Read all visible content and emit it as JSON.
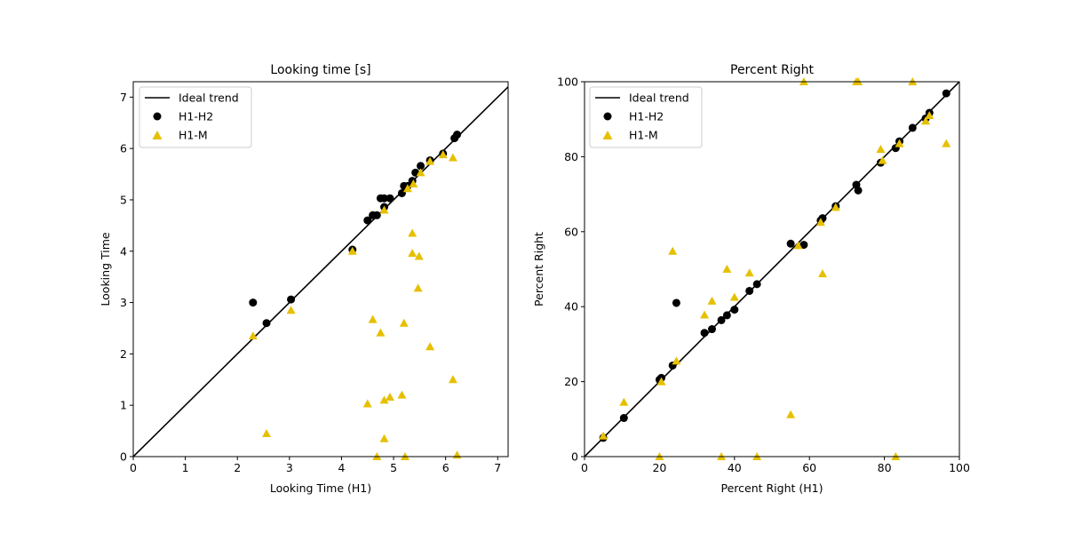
{
  "colors": {
    "ideal": "#000000",
    "h1h2": "#000000",
    "h1m": "#e6c000"
  },
  "chart_data": [
    {
      "type": "scatter",
      "title": "Looking time [s]",
      "xlabel": "Looking Time (H1)",
      "ylabel": "Looking Time",
      "xlim": [
        0,
        7.2
      ],
      "ylim": [
        0,
        7.3
      ],
      "xticks": [
        0,
        1,
        2,
        3,
        4,
        5,
        6,
        7
      ],
      "yticks": [
        0,
        1,
        2,
        3,
        4,
        5,
        6,
        7
      ],
      "legend": {
        "location": "top-left",
        "entries": [
          "Ideal trend",
          "H1-H2",
          "H1-M"
        ]
      },
      "grid": false,
      "ideal_trend": {
        "name": "Ideal trend",
        "x": [
          0,
          7.2
        ],
        "y": [
          0,
          7.2
        ]
      },
      "series": [
        {
          "name": "H1-H2",
          "marker": "circle",
          "x": [
            2.3,
            2.56,
            3.03,
            4.21,
            4.5,
            4.6,
            4.68,
            4.75,
            4.82,
            4.82,
            4.93,
            5.16,
            5.2,
            5.27,
            5.36,
            5.42,
            5.52,
            5.7,
            5.95,
            6.17,
            6.22
          ],
          "y": [
            3.0,
            2.6,
            3.06,
            4.03,
            4.6,
            4.7,
            4.7,
            5.03,
            5.03,
            4.86,
            5.03,
            5.13,
            5.27,
            5.27,
            5.37,
            5.53,
            5.66,
            5.77,
            5.9,
            6.2,
            6.27
          ]
        },
        {
          "name": "H1-M",
          "marker": "triangle",
          "x": [
            2.3,
            2.56,
            3.03,
            4.21,
            4.5,
            4.6,
            4.68,
            4.75,
            4.82,
            4.82,
            4.82,
            4.93,
            5.16,
            5.2,
            5.22,
            5.27,
            5.36,
            5.36,
            5.38,
            5.47,
            5.49,
            5.52,
            5.7,
            5.7,
            5.95,
            6.14,
            6.14,
            6.22
          ],
          "y": [
            2.35,
            0.45,
            2.85,
            4.0,
            1.03,
            2.67,
            0.0,
            2.41,
            0.35,
            1.1,
            4.8,
            1.16,
            1.2,
            2.6,
            0.0,
            5.22,
            3.96,
            4.35,
            5.31,
            3.28,
            3.9,
            5.53,
            2.14,
            5.75,
            5.88,
            1.5,
            5.82,
            0.03
          ]
        }
      ]
    },
    {
      "type": "scatter",
      "title": "Percent Right",
      "xlabel": "Percent Right (H1)",
      "ylabel": "Percent Right",
      "xlim": [
        0,
        100
      ],
      "ylim": [
        0,
        100
      ],
      "xticks": [
        0,
        20,
        40,
        60,
        80,
        100
      ],
      "yticks": [
        0,
        20,
        40,
        60,
        80,
        100
      ],
      "legend": {
        "location": "top-left",
        "entries": [
          "Ideal trend",
          "H1-H2",
          "H1-M"
        ]
      },
      "grid": false,
      "ideal_trend": {
        "name": "Ideal trend",
        "x": [
          0,
          100
        ],
        "y": [
          0,
          100
        ]
      },
      "series": [
        {
          "name": "H1-H2",
          "marker": "circle",
          "x": [
            5,
            10.5,
            20,
            20.5,
            23.5,
            24.5,
            32,
            34,
            36.5,
            38,
            40,
            44,
            46,
            55,
            58.5,
            63,
            63.5,
            67,
            72.5,
            73,
            79,
            83,
            84,
            87.5,
            91,
            92,
            96.5
          ],
          "y": [
            5,
            10.3,
            20.5,
            21,
            24.3,
            41,
            33,
            34,
            36.4,
            37.7,
            39.2,
            44.2,
            46,
            56.8,
            56.5,
            63,
            63.6,
            66.8,
            72.5,
            71,
            78.4,
            82.3,
            84.1,
            87.7,
            90.2,
            91.7,
            96.9
          ]
        },
        {
          "name": "H1-M",
          "marker": "triangle",
          "x": [
            5,
            10.5,
            20,
            20.5,
            23.5,
            24.5,
            32,
            34,
            36.5,
            38,
            40,
            44,
            46,
            55,
            57,
            58.5,
            63,
            63.5,
            67,
            72.5,
            73,
            79,
            79.5,
            83,
            84,
            87.5,
            91,
            92,
            96.5
          ],
          "y": [
            5.5,
            14.5,
            0,
            20,
            54.8,
            25.5,
            37.8,
            41.5,
            0,
            50,
            42.5,
            49,
            0,
            11.2,
            56.3,
            100,
            62.5,
            48.8,
            66.5,
            100,
            100,
            82,
            79,
            0,
            83.5,
            100,
            89.5,
            91,
            83.5
          ]
        }
      ]
    }
  ]
}
